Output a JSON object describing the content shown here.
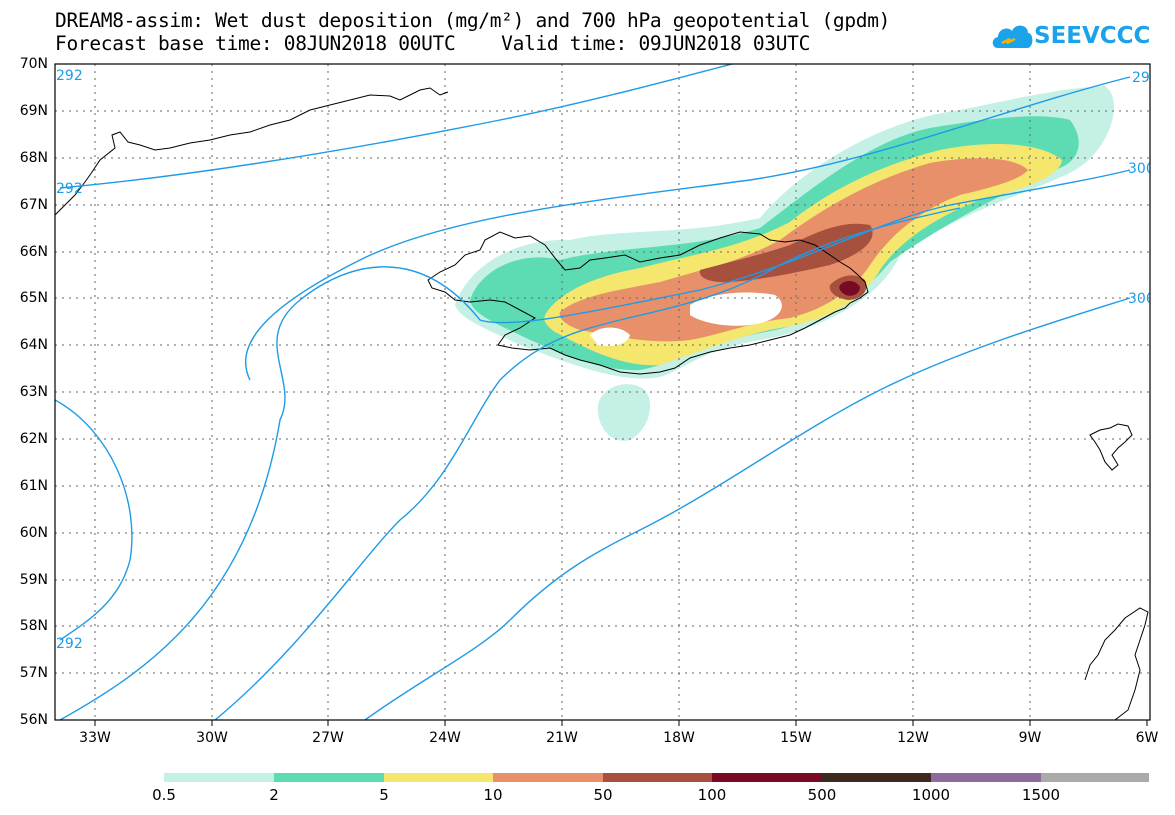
{
  "title": {
    "line1": "DREAM8-assim: Wet dust deposition (mg/m²) and 700 hPa geopotential (gpdm)",
    "line2": "Forecast base time: 08JUN2018 00UTC    Valid time: 09JUN2018 03UTC"
  },
  "logo": {
    "text": "SEEVCCC",
    "icon": "cloud-icon",
    "color": "#1aa3e8"
  },
  "map": {
    "lon_range": [
      -34.3,
      -6
    ],
    "lat_range": [
      56,
      70
    ],
    "lat_labels": [
      "70N",
      "69N",
      "68N",
      "67N",
      "66N",
      "65N",
      "64N",
      "63N",
      "62N",
      "61N",
      "60N",
      "59N",
      "58N",
      "57N",
      "56N"
    ],
    "lon_labels": [
      "33W",
      "30W",
      "27W",
      "24W",
      "21W",
      "18W",
      "15W",
      "12W",
      "9W",
      "6W"
    ],
    "contour_labels": [
      "292",
      "292",
      "292",
      "29",
      "300",
      "300"
    ],
    "contour_color": "#1f9be6"
  },
  "colorbar": {
    "labels": [
      "0.5",
      "2",
      "5",
      "10",
      "50",
      "100",
      "500",
      "1000",
      "1500"
    ],
    "colors": [
      "#c4f0e6",
      "#5ddcb4",
      "#f5e66e",
      "#e8906a",
      "#a8503e",
      "#780a26",
      "#3c2a1e",
      "#8e6a9e",
      "#aaaaaa"
    ]
  }
}
